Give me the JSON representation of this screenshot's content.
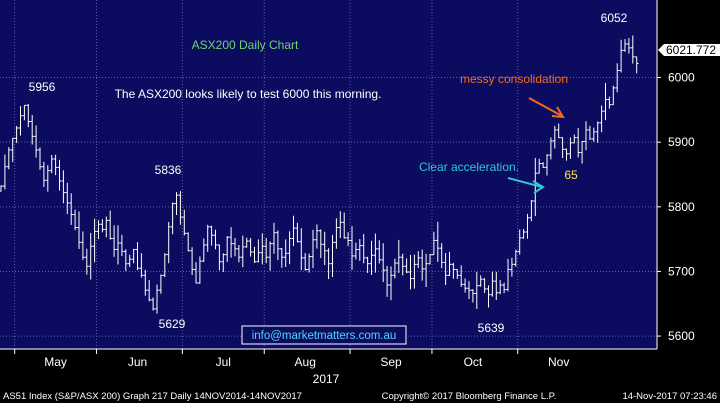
{
  "chart_data": {
    "type": "ohlc",
    "title": "ASX200 Daily Chart",
    "subtitle": "The ASX200 looks likely to test 6000 this morning.",
    "xlabel": "2017",
    "ylabel": "",
    "ylim": [
      5580,
      6120
    ],
    "yticks": [
      5600,
      5700,
      5800,
      5900,
      6000
    ],
    "ytick_labels": [
      "5600",
      "5700",
      "5800",
      "5900",
      "6000"
    ],
    "x_month_labels": [
      {
        "label": "May",
        "index": 14
      },
      {
        "label": "Jun",
        "index": 35
      },
      {
        "label": "Jul",
        "index": 57
      },
      {
        "label": "Aug",
        "index": 78
      },
      {
        "label": "Sep",
        "index": 100
      },
      {
        "label": "Oct",
        "index": 121
      },
      {
        "label": "Nov",
        "index": 143
      }
    ],
    "last_price": 6021.772,
    "last_price_label": "6021.772",
    "close": [
      5832,
      5862,
      5888,
      5906,
      5922,
      5941,
      5957,
      5932,
      5909,
      5888,
      5862,
      5841,
      5856,
      5874,
      5861,
      5840,
      5822,
      5806,
      5788,
      5768,
      5745,
      5722,
      5708,
      5739,
      5762,
      5773,
      5765,
      5779,
      5751,
      5734,
      5744,
      5731,
      5712,
      5719,
      5734,
      5705,
      5694,
      5671,
      5656,
      5642,
      5671,
      5694,
      5726,
      5769,
      5805,
      5818,
      5784,
      5759,
      5732,
      5703,
      5682,
      5716,
      5741,
      5769,
      5756,
      5741,
      5715,
      5726,
      5753,
      5743,
      5735,
      5722,
      5738,
      5747,
      5730,
      5715,
      5729,
      5739,
      5722,
      5743,
      5760,
      5735,
      5722,
      5728,
      5751,
      5767,
      5746,
      5721,
      5703,
      5723,
      5749,
      5763,
      5742,
      5732,
      5712,
      5745,
      5768,
      5776,
      5752,
      5748,
      5724,
      5734,
      5740,
      5721,
      5712,
      5725,
      5735,
      5718,
      5702,
      5679,
      5694,
      5713,
      5722,
      5708,
      5699,
      5689,
      5711,
      5721,
      5704,
      5712,
      5726,
      5748,
      5736,
      5714,
      5694,
      5711,
      5703,
      5694,
      5680,
      5674,
      5671,
      5666,
      5678,
      5688,
      5673,
      5664,
      5685,
      5667,
      5679,
      5672,
      5703,
      5711,
      5731,
      5752,
      5761,
      5783,
      5809,
      5852,
      5867,
      5861,
      5880,
      5902,
      5919,
      5907,
      5889,
      5882,
      5899,
      5907,
      5884,
      5901,
      5919,
      5905,
      5916,
      5930,
      5948,
      5966,
      5958,
      5984,
      6011,
      6042,
      6052,
      6046,
      6032,
      6021.772
    ],
    "annotations": [
      {
        "text": "5956",
        "color": "#ffffff"
      },
      {
        "text": "5836",
        "color": "#ffffff"
      },
      {
        "text": "5629",
        "color": "#ffffff"
      },
      {
        "text": "5639",
        "color": "#ffffff"
      },
      {
        "text": "6052",
        "color": "#ffffff"
      },
      {
        "text": "messy consolidation",
        "color": "#f26b1d"
      },
      {
        "text": "Clear acceleration.",
        "color": "#33c6d6"
      },
      {
        "text": "65",
        "color": "#ffe14a"
      }
    ],
    "watermark": "info@marketmatters.com.au",
    "grid": true,
    "colors": {
      "background": "#0b0b60",
      "bars": "#ffffff",
      "grid": "#5f5fa8",
      "title": "#6fd66f",
      "orange_arrow": "#f26b1d",
      "cyan_arrow": "#33c6d6",
      "label_box": "#ffffff",
      "watermark": "#4fd9f0"
    }
  },
  "footer": {
    "left": "AS51 Index (S&P/ASX 200) Graph 217  Daily 14NOV2014-14NOV2017",
    "center": "Copyright© 2017 Bloomberg Finance L.P.",
    "right": "14-Nov-2017 07:23:46"
  }
}
